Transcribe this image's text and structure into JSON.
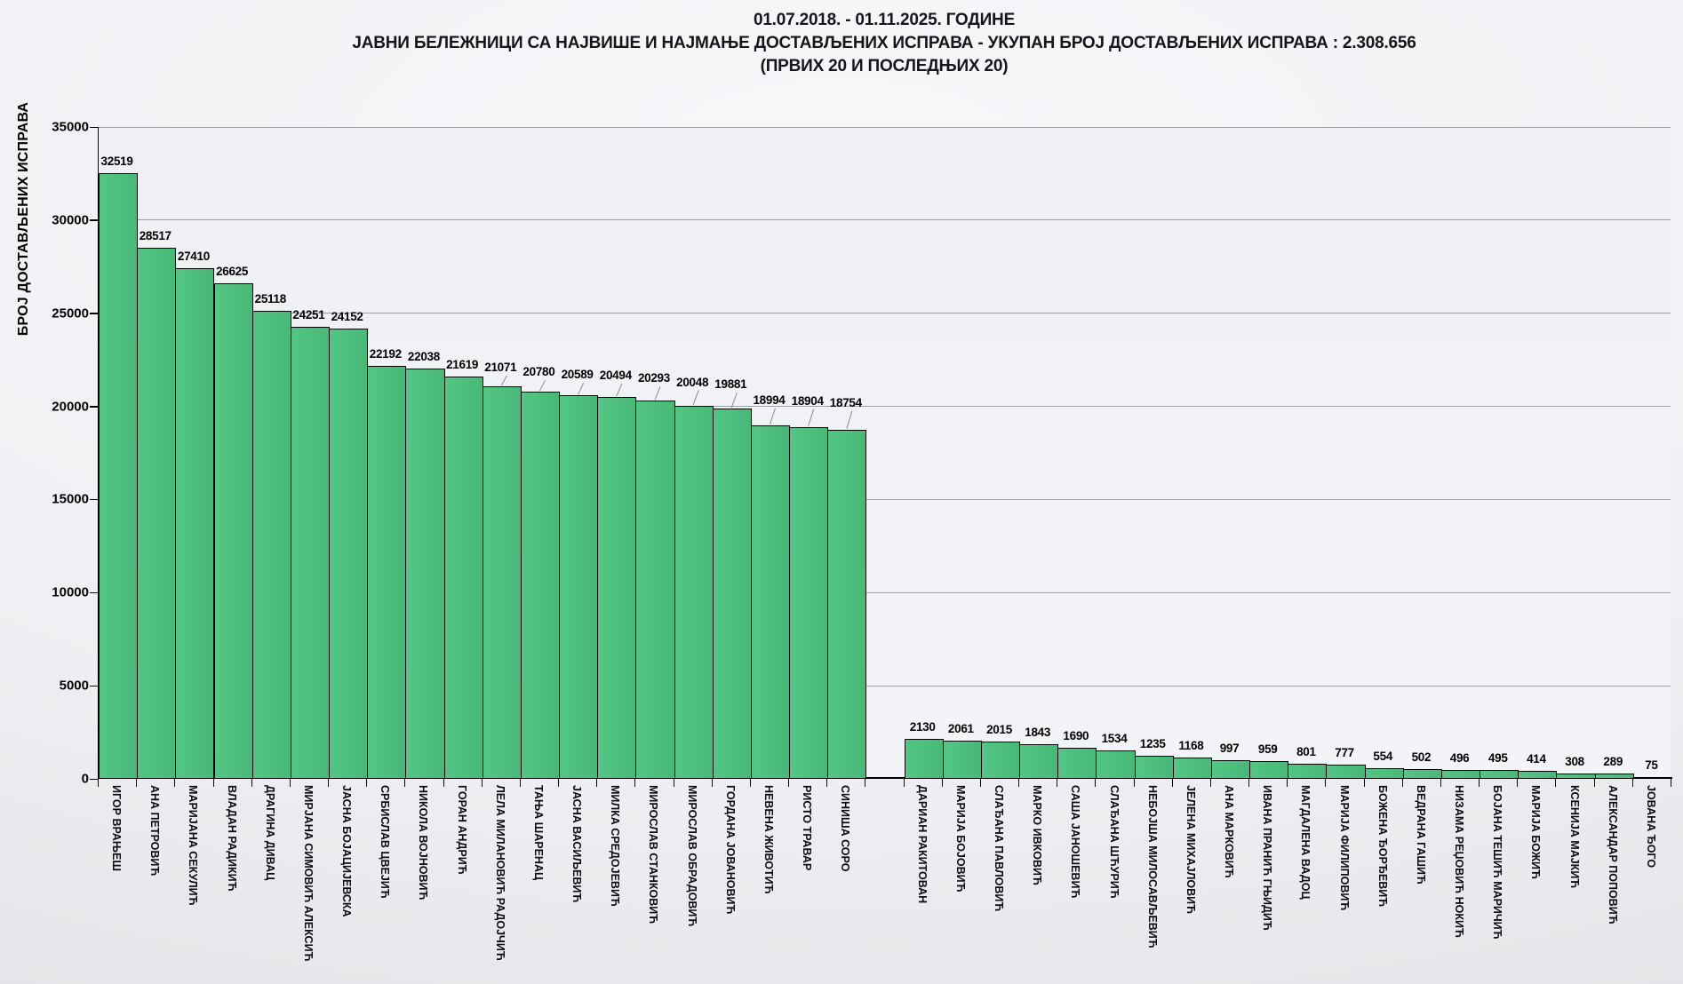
{
  "title": {
    "line1": "01.07.2018.  - 01.11.2025.  ГОДИНЕ",
    "line2": "ЈАВНИ БЕЛЕЖНИЦИ СА НАЈВИШЕ И НАЈМАЊЕ ДОСТАВЉЕНИХ ИСПРАВА - УКУПАН БРОЈ ДОСТАВЉЕНИХ ИСПРАВА : 2.308.656",
    "line3": "(ПРВИХ 20 И ПОСЛЕДЊИХ 20)"
  },
  "chart_data": {
    "type": "bar",
    "title": "01.07.2018. - 01.11.2025. ГОДИНЕ — ЈАВНИ БЕЛЕЖНИЦИ СА НАЈВИШЕ И НАЈМАЊЕ ДОСТАВЉЕНИХ ИСПРАВА (ПРВИХ 20 И ПОСЛЕДЊИХ 20)",
    "total_documents_label": "2.308.656",
    "xlabel": "",
    "ylabel": "БРОЈ ДОСТАВЉЕНИХ ИСПРАВА",
    "ylim": [
      0,
      35000
    ],
    "yticks": [
      0,
      5000,
      10000,
      15000,
      20000,
      25000,
      30000,
      35000
    ],
    "grid": true,
    "legend_position": "none",
    "bar_color": "#4DBE7D",
    "bar_border_color": "#000000",
    "groups": [
      {
        "name": "first-20",
        "categories": [
          "ИГОР ВРАЊЕШ",
          "АНА ПЕТРОВИЋ",
          "МАРИЈАНА СЕКУЛИЋ",
          "ВЛАДАН РАДИКИЋ",
          "ДРАГИНА ДИВАЦ",
          "МИРЈАНА СИМОВИЋ  АЛЕКСИЋ",
          "ЈАСНА БОЈАЦИЈЕВСКА",
          "СРБИСЛАВ ЦВЕЈИЋ",
          "НИКОЛА ВОЈНОВИЋ",
          "ГОРАН АНДРИЋ",
          "ЛЕЛА МИЛАНОВИЋ  РАДОЈЧИЋ",
          "ТАЊА ШАРЕНАЦ",
          "ЈАСНА ВАСИЉЕВИЋ",
          "МИЛКА СРЕДОЈЕВИЋ",
          "МИРОСЛАВ СТАНКОВИЋ",
          "МИРОСЛАВ ОБРАДОВИЋ",
          "ГОРДАНА ЈОВАНОВИЋ",
          "НЕВЕНА ЖИВОТИЋ",
          "РИСТО ТРАВАР",
          "СИНИША СОРО"
        ],
        "values": [
          32519,
          28517,
          27410,
          26625,
          25118,
          24251,
          24152,
          22192,
          22038,
          21619,
          21071,
          20780,
          20589,
          20494,
          20293,
          20048,
          19881,
          18994,
          18904,
          18754
        ]
      },
      {
        "name": "last-20",
        "categories": [
          "ДАРИАН РАКИТОВАН",
          "МАРИЈА БОЈОВИЋ",
          "СЛАЂАНА ПАВЛОВИЋ",
          "МАРКО ИВКОВИЋ",
          "САША ЈАНОШЕВИЋ",
          "СЛАЂАНА ШЋУРИЋ",
          "НЕБОЈША МИЛОСАВЉЕВИЋ",
          "ЈЕЛЕНА МИХАЈЛОВИЋ",
          "АНА МАРКОВИЋ",
          "ИВАНА ПРАНИЋ ГЊИДИЋ",
          "МАГДАЛЕНА ВАДОЦ",
          "МАРИЈА ФИЛИПОВИЋ",
          "БОЖЕНА ЂОРЂЕВИЋ",
          "ВЕДРАНА ГАШИЋ",
          "НИЗАМА РЕЏОВИЋ НОКИЋ",
          "БОЈАНА ТЕШИЋ МАРИЧИЋ",
          "МАРИЈА БОЖИЋ",
          "КСЕНИЈА МАЈКИЋ",
          "АЛЕКСАНДАР ПОПОВИЋ",
          "ЈОВАНА ЂОГО"
        ],
        "values": [
          2130,
          2061,
          2015,
          1843,
          1690,
          1534,
          1235,
          1168,
          997,
          959,
          801,
          777,
          554,
          502,
          496,
          495,
          414,
          308,
          289,
          75
        ]
      }
    ],
    "layout_hints": {
      "gap_slots_between_groups": 1,
      "group1_raised_value_labels_from_index": 10
    }
  },
  "colors": {
    "bar_fill": "#4DBE7D",
    "bar_border": "#000000",
    "gridline": "#9DA0A4",
    "axis": "#000000",
    "text": "#121217",
    "leader_line": "#8A8C90"
  }
}
